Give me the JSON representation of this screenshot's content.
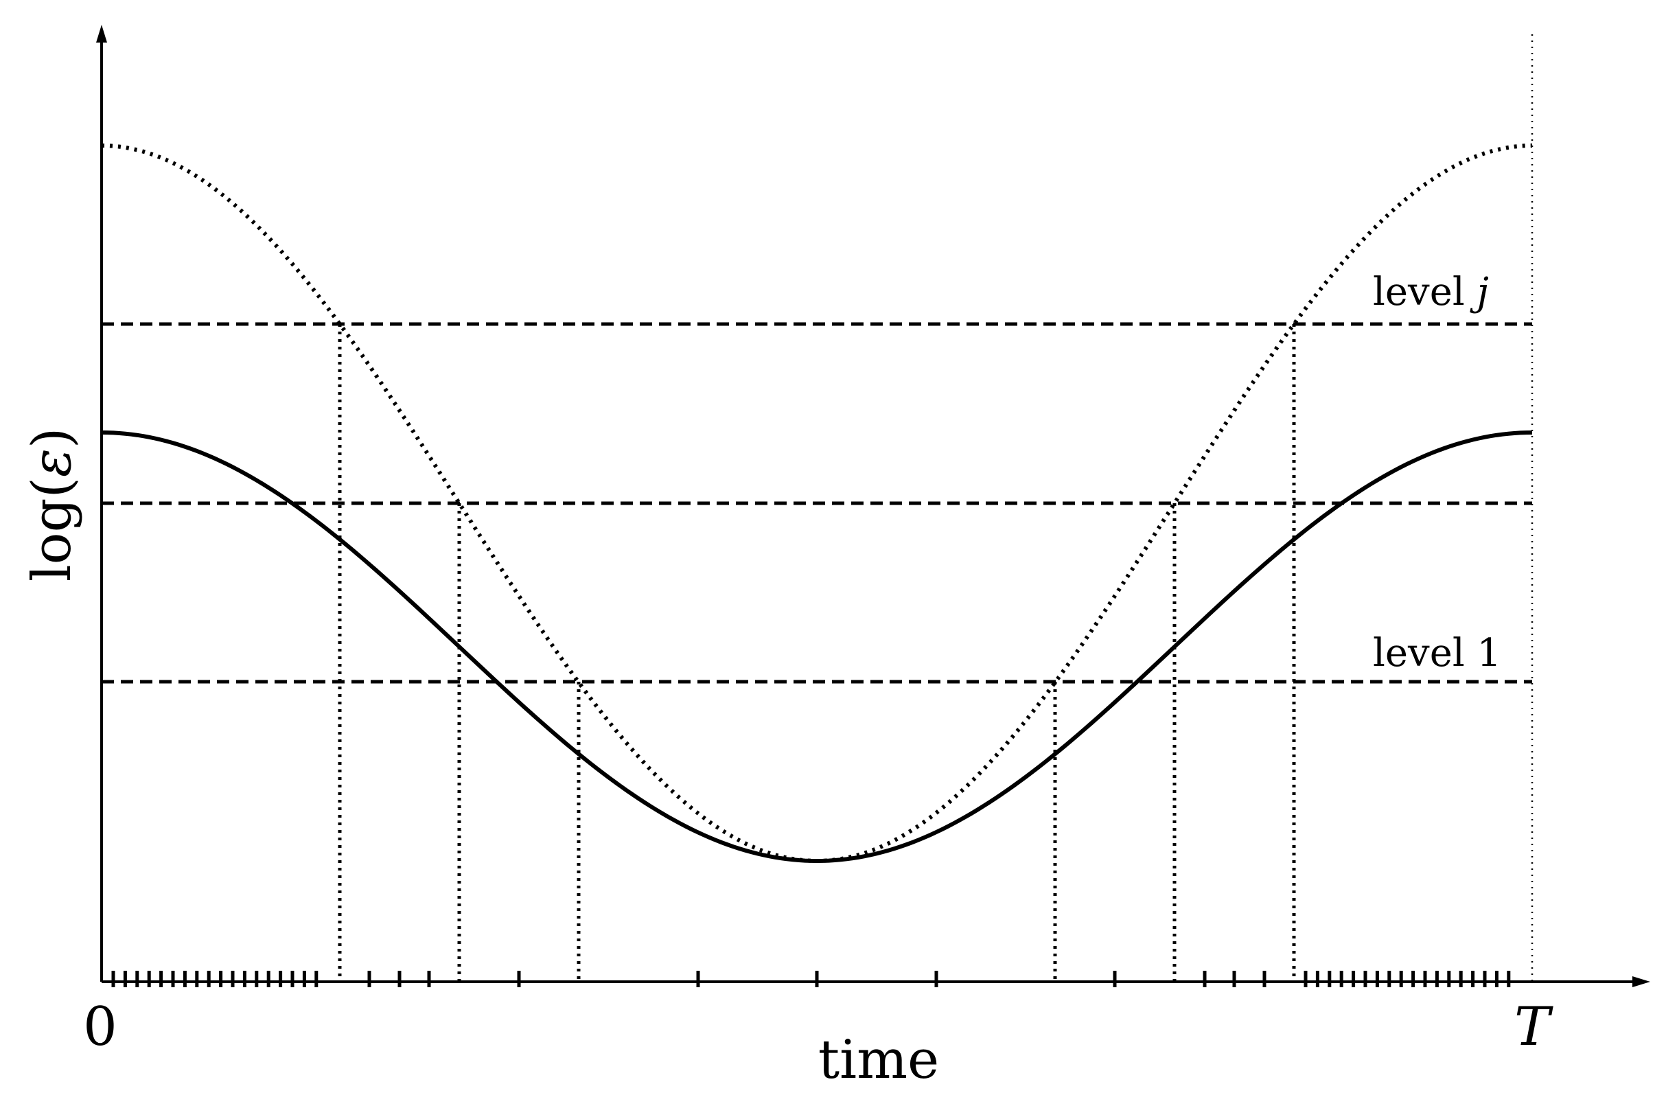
{
  "figure": {
    "y_label_prefix": "log(",
    "y_label_symbol": "ε",
    "y_label_suffix": ")",
    "x_label": "time",
    "x_tick_start": "0",
    "x_tick_end": "T",
    "level_top_label": "level ",
    "level_top_symbol": "j",
    "level_bottom_label": "level 1",
    "colors": {
      "ink": "#000000",
      "background": "#ffffff"
    }
  }
}
